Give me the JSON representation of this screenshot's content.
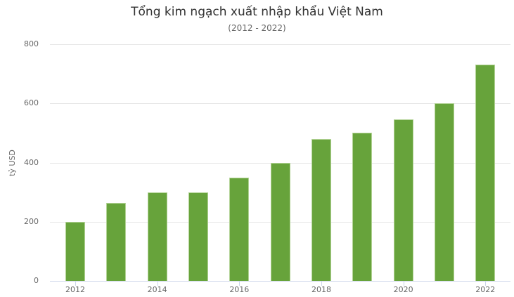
{
  "chart_data": {
    "type": "bar",
    "title": "Tổng kim ngạch xuất nhập khẩu Việt Nam",
    "subtitle": "(2012 - 2022)",
    "xlabel": "",
    "ylabel": "tỷ USD",
    "categories": [
      "2012",
      "2013",
      "2014",
      "2015",
      "2016",
      "2017",
      "2018",
      "2019",
      "2020",
      "2021",
      "2022"
    ],
    "values": [
      200,
      264,
      300,
      300,
      350,
      400,
      480,
      500,
      545,
      600,
      730
    ],
    "ylim": [
      0,
      800
    ],
    "yticks": [
      0,
      200,
      400,
      600,
      800
    ],
    "xticks_labeled": [
      "2012",
      "2014",
      "2016",
      "2018",
      "2020",
      "2022"
    ],
    "grid": true,
    "legend": false,
    "colors": {
      "bar_fill": "#67a33b",
      "bar_border": "#b3d396",
      "gridline": "#e6e6e6",
      "axis_line": "#ccd6eb",
      "title_text": "#333333",
      "muted_text": "#666666",
      "background": "#ffffff"
    }
  }
}
